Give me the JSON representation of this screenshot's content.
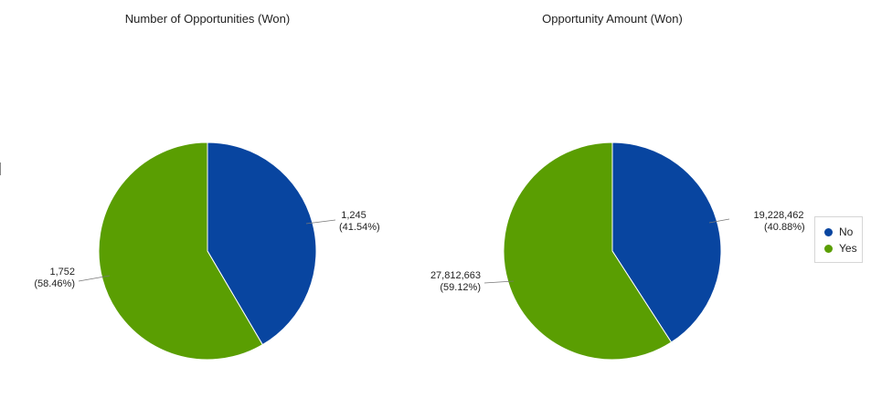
{
  "colors": {
    "No": "#0845a0",
    "Yes": "#5a9e02"
  },
  "legend": {
    "items": [
      {
        "label": "No",
        "color": "#0845a0"
      },
      {
        "label": "Yes",
        "color": "#5a9e02"
      }
    ]
  },
  "chart_data": [
    {
      "type": "pie",
      "title": "Number of Opportunities (Won)",
      "categories": [
        "No",
        "Yes"
      ],
      "values": [
        1245,
        1752
      ],
      "labels": [
        {
          "value": "1,245",
          "percent": "(41.54%)"
        },
        {
          "value": "1,752",
          "percent": "(58.46%)"
        }
      ],
      "legend": "right"
    },
    {
      "type": "pie",
      "title": "Opportunity Amount (Won)",
      "categories": [
        "No",
        "Yes"
      ],
      "values": [
        19228462,
        27812663
      ],
      "labels": [
        {
          "value": "19,228,462",
          "percent": "(40.88%)"
        },
        {
          "value": "27,812,663",
          "percent": "(59.12%)"
        }
      ],
      "legend": "right"
    }
  ]
}
